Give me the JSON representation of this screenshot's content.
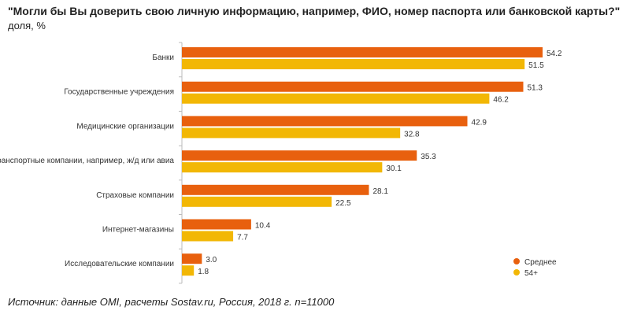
{
  "header": {
    "title": "\"Могли бы Вы доверить свою личную информацию, например, ФИО, номер паспорта или банковской карты?\"",
    "subtitle": "доля, %"
  },
  "footer": {
    "source": "Источник: данные OMI, расчеты Sostav.ru, Россия, 2018 г. n=11000"
  },
  "colors": {
    "series_1": "#e8600e",
    "series_2": "#f2b705",
    "axis": "#bbbbbb",
    "text": "#333333"
  },
  "chart_data": {
    "type": "bar",
    "orientation": "horizontal",
    "title": "\"Могли бы Вы доверить свою личную информацию, например, ФИО, номер паспорта или банковской карты?\"",
    "subtitle": "доля, %",
    "categories": [
      "Банки",
      "Государственные учреждения",
      "Медицинские организации",
      "Транспортные компании, например, ж/д или авиа",
      "Страховые компании",
      "Интернет-магазины",
      "Исследовательские компании"
    ],
    "series": [
      {
        "name": "Среднее",
        "values": [
          54.2,
          51.3,
          42.9,
          35.3,
          28.1,
          10.4,
          3.0
        ],
        "labels": [
          "54.2",
          "51.3",
          "42.9",
          "35.3",
          "28.1",
          "10.4",
          "3.0"
        ]
      },
      {
        "name": "54+",
        "values": [
          51.5,
          46.2,
          32.8,
          30.1,
          22.5,
          7.7,
          1.8
        ],
        "labels": [
          "51.5",
          "46.2",
          "32.8",
          "30.1",
          "22.5",
          "7.7",
          "1.8"
        ]
      }
    ],
    "xlim": [
      0,
      60
    ],
    "grid": false,
    "legend_position": "bottom-right"
  }
}
